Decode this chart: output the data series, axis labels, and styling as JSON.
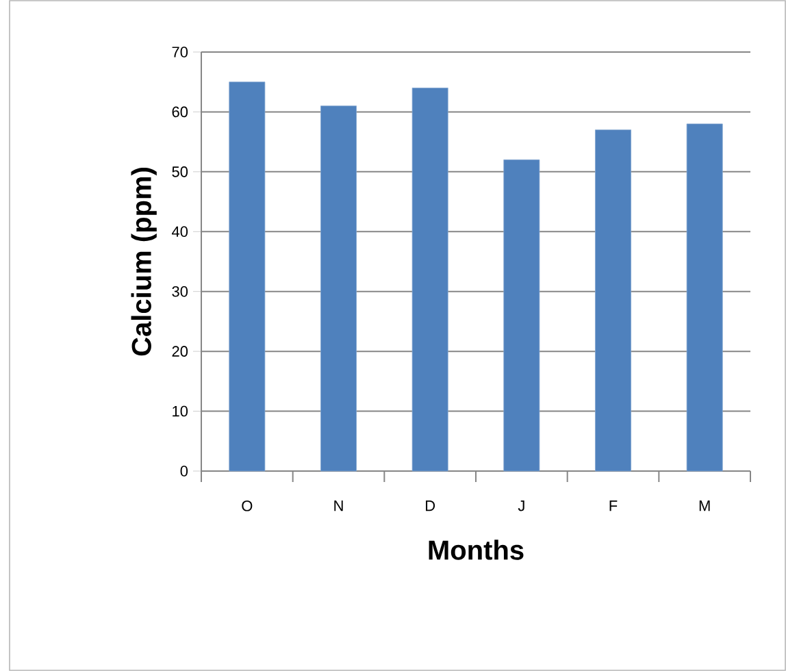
{
  "chart_data": {
    "type": "bar",
    "xlabel": "Months",
    "ylabel": "Calcium (ppm)",
    "categories": [
      "O",
      "N",
      "D",
      "J",
      "F",
      "M"
    ],
    "values": [
      65,
      61,
      64,
      52,
      57,
      58
    ],
    "color": "#4f81bd",
    "ylim": [
      0,
      70
    ],
    "yticks": [
      0,
      10,
      20,
      30,
      40,
      50,
      60,
      70
    ],
    "grid": "y"
  }
}
